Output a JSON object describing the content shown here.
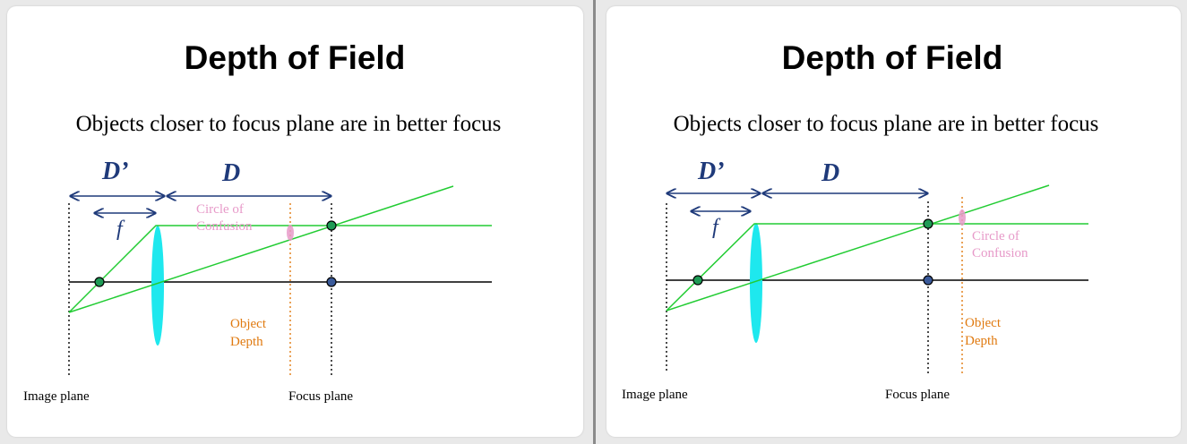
{
  "slides": [
    {
      "title": "Depth of Field",
      "subtitle": "Objects closer to focus plane are in better focus",
      "labels": {
        "d_prime": "D’",
        "d": "D",
        "f": "f",
        "circle_of_confusion_1": "Circle of",
        "circle_of_confusion_2": "Confusion",
        "object_depth_1": "Object",
        "object_depth_2": "Depth",
        "image_plane": "Image plane",
        "focus_plane": "Focus plane"
      }
    },
    {
      "title": "Depth of Field",
      "subtitle": "Objects closer to focus plane are in better focus",
      "labels": {
        "d_prime": "D’",
        "d": "D",
        "f": "f",
        "circle_of_confusion_1": "Circle of",
        "circle_of_confusion_2": "Confusion",
        "object_depth_1": "Object",
        "object_depth_2": "Depth",
        "image_plane": "Image plane",
        "focus_plane": "Focus plane"
      }
    }
  ],
  "colors": {
    "ray": "#22cc33",
    "lens": "#1ee8ee",
    "arrow": "#1f3a7a",
    "object_depth": "#e07a10",
    "circle_of_confusion": "#e79ac9",
    "axis": "#000000"
  }
}
